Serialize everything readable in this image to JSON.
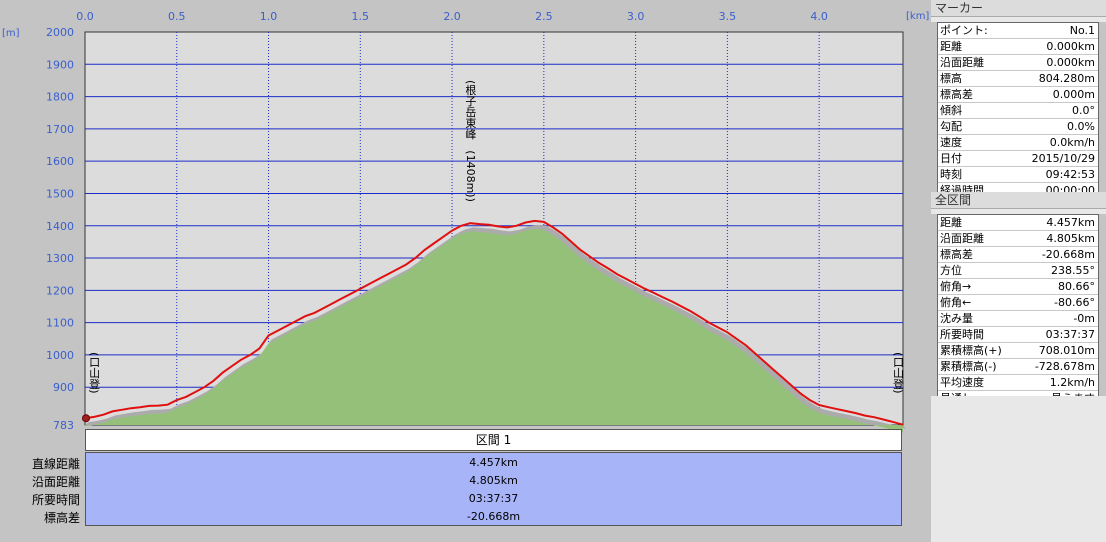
{
  "chart_data": {
    "type": "area",
    "x_unit": "[km]",
    "y_unit": "[m]",
    "x_ticks": [
      "0.0",
      "0.5",
      "1.0",
      "1.5",
      "2.0",
      "2.5",
      "3.0",
      "3.5",
      "4.0"
    ],
    "y_ticks": [
      "2000",
      "1900",
      "1800",
      "1700",
      "1600",
      "1500",
      "1400",
      "1300",
      "1200",
      "1100",
      "1000",
      "900",
      "783"
    ],
    "xlim": [
      0,
      4.457
    ],
    "ylim": [
      783,
      2000
    ],
    "series": [
      {
        "values": [
          [
            0.0,
            804
          ],
          [
            0.05,
            808
          ],
          [
            0.1,
            815
          ],
          [
            0.15,
            825
          ],
          [
            0.2,
            830
          ],
          [
            0.25,
            835
          ],
          [
            0.3,
            838
          ],
          [
            0.35,
            842
          ],
          [
            0.4,
            843
          ],
          [
            0.45,
            846
          ],
          [
            0.5,
            860
          ],
          [
            0.55,
            870
          ],
          [
            0.6,
            885
          ],
          [
            0.65,
            900
          ],
          [
            0.7,
            920
          ],
          [
            0.75,
            945
          ],
          [
            0.8,
            965
          ],
          [
            0.85,
            985
          ],
          [
            0.9,
            1000
          ],
          [
            0.95,
            1020
          ],
          [
            1.0,
            1060
          ],
          [
            1.05,
            1075
          ],
          [
            1.1,
            1090
          ],
          [
            1.15,
            1105
          ],
          [
            1.2,
            1120
          ],
          [
            1.25,
            1130
          ],
          [
            1.3,
            1145
          ],
          [
            1.35,
            1160
          ],
          [
            1.4,
            1175
          ],
          [
            1.45,
            1190
          ],
          [
            1.5,
            1205
          ],
          [
            1.55,
            1220
          ],
          [
            1.6,
            1235
          ],
          [
            1.65,
            1250
          ],
          [
            1.7,
            1265
          ],
          [
            1.75,
            1280
          ],
          [
            1.8,
            1300
          ],
          [
            1.85,
            1325
          ],
          [
            1.9,
            1345
          ],
          [
            1.95,
            1365
          ],
          [
            2.0,
            1385
          ],
          [
            2.05,
            1400
          ],
          [
            2.1,
            1408
          ],
          [
            2.15,
            1405
          ],
          [
            2.2,
            1403
          ],
          [
            2.25,
            1398
          ],
          [
            2.3,
            1395
          ],
          [
            2.35,
            1400
          ],
          [
            2.4,
            1410
          ],
          [
            2.45,
            1415
          ],
          [
            2.5,
            1412
          ],
          [
            2.55,
            1395
          ],
          [
            2.6,
            1375
          ],
          [
            2.65,
            1350
          ],
          [
            2.7,
            1325
          ],
          [
            2.75,
            1305
          ],
          [
            2.8,
            1285
          ],
          [
            2.85,
            1268
          ],
          [
            2.9,
            1250
          ],
          [
            2.95,
            1235
          ],
          [
            3.0,
            1220
          ],
          [
            3.05,
            1205
          ],
          [
            3.1,
            1192
          ],
          [
            3.15,
            1178
          ],
          [
            3.2,
            1165
          ],
          [
            3.25,
            1150
          ],
          [
            3.3,
            1135
          ],
          [
            3.35,
            1118
          ],
          [
            3.4,
            1100
          ],
          [
            3.45,
            1085
          ],
          [
            3.5,
            1070
          ],
          [
            3.55,
            1050
          ],
          [
            3.6,
            1030
          ],
          [
            3.65,
            1005
          ],
          [
            3.7,
            980
          ],
          [
            3.75,
            955
          ],
          [
            3.8,
            930
          ],
          [
            3.85,
            905
          ],
          [
            3.9,
            880
          ],
          [
            3.95,
            860
          ],
          [
            4.0,
            845
          ],
          [
            4.05,
            838
          ],
          [
            4.1,
            832
          ],
          [
            4.15,
            826
          ],
          [
            4.2,
            820
          ],
          [
            4.25,
            812
          ],
          [
            4.3,
            807
          ],
          [
            4.35,
            800
          ],
          [
            4.4,
            793
          ],
          [
            4.457,
            784
          ]
        ]
      }
    ],
    "annotations": [
      {
        "text": "(根子岳東峰　(1408m))",
        "x": 2.1
      },
      {
        "text": "(口山登)",
        "x": 0.05
      },
      {
        "text": "(口山登)",
        "x": 4.43
      }
    ]
  },
  "section": {
    "header": "区間 1",
    "rows": [
      {
        "label": "直線距離",
        "value": "4.457km"
      },
      {
        "label": "沿面距離",
        "value": "4.805km"
      },
      {
        "label": "所要時間",
        "value": "03:37:37"
      },
      {
        "label": "標高差",
        "value": "-20.668m"
      }
    ]
  },
  "marker_panel": {
    "title": "マーカー",
    "rows": [
      {
        "k": "ポイント:",
        "v": "No.1"
      },
      {
        "k": "距離",
        "v": "0.000km"
      },
      {
        "k": "沿面距離",
        "v": "0.000km"
      },
      {
        "k": "標高",
        "v": "804.280m"
      },
      {
        "k": "標高差",
        "v": "0.000m"
      },
      {
        "k": "傾斜",
        "v": "0.0°"
      },
      {
        "k": "勾配",
        "v": "0.0%"
      },
      {
        "k": "速度",
        "v": "0.0km/h"
      },
      {
        "k": "日付",
        "v": "2015/10/29"
      },
      {
        "k": "時刻",
        "v": "09:42:53"
      },
      {
        "k": "経過時間",
        "v": "00:00:00"
      }
    ]
  },
  "total_panel": {
    "title": "全区間",
    "rows": [
      {
        "k": "距離",
        "v": "4.457km"
      },
      {
        "k": "沿面距離",
        "v": "4.805km"
      },
      {
        "k": "標高差",
        "v": "-20.668m"
      },
      {
        "k": "方位",
        "v": "238.55°"
      },
      {
        "k": "俯角→",
        "v": "80.66°"
      },
      {
        "k": "俯角←",
        "v": "-80.66°"
      },
      {
        "k": "沈み量",
        "v": "-0m"
      },
      {
        "k": "所要時間",
        "v": "03:37:37"
      },
      {
        "k": "累積標高(+)",
        "v": "708.010m"
      },
      {
        "k": "累積標高(-)",
        "v": "-728.678m"
      },
      {
        "k": "平均速度",
        "v": "1.2km/h"
      },
      {
        "k": "見通し",
        "v": "見えます"
      }
    ]
  },
  "colors": {
    "plot_bg": "#dcdcdc",
    "grid": "#1c2cc8",
    "area_fill": "#94c07a",
    "shadow": "#ababab",
    "line": "#e01010",
    "section_bg": "#a8b4f8"
  }
}
